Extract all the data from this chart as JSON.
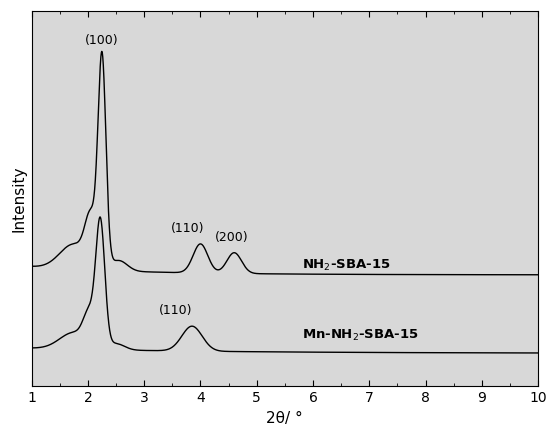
{
  "xlabel": "2θ/ °",
  "ylabel": "Intensity",
  "xlim": [
    1,
    10
  ],
  "xticks": [
    1,
    2,
    3,
    4,
    5,
    6,
    7,
    8,
    9,
    10
  ],
  "background_color": "#ffffff",
  "plot_bg_color": "#e8e8e8",
  "line_color": "#000000",
  "label1": "NH$_2$-SBA-15",
  "label2": "Mn-NH$_2$-SBA-15",
  "annotation_100": "(100)",
  "annotation_110_top": "(110)",
  "annotation_200_top": "(200)",
  "annotation_110_bot": "(110)"
}
